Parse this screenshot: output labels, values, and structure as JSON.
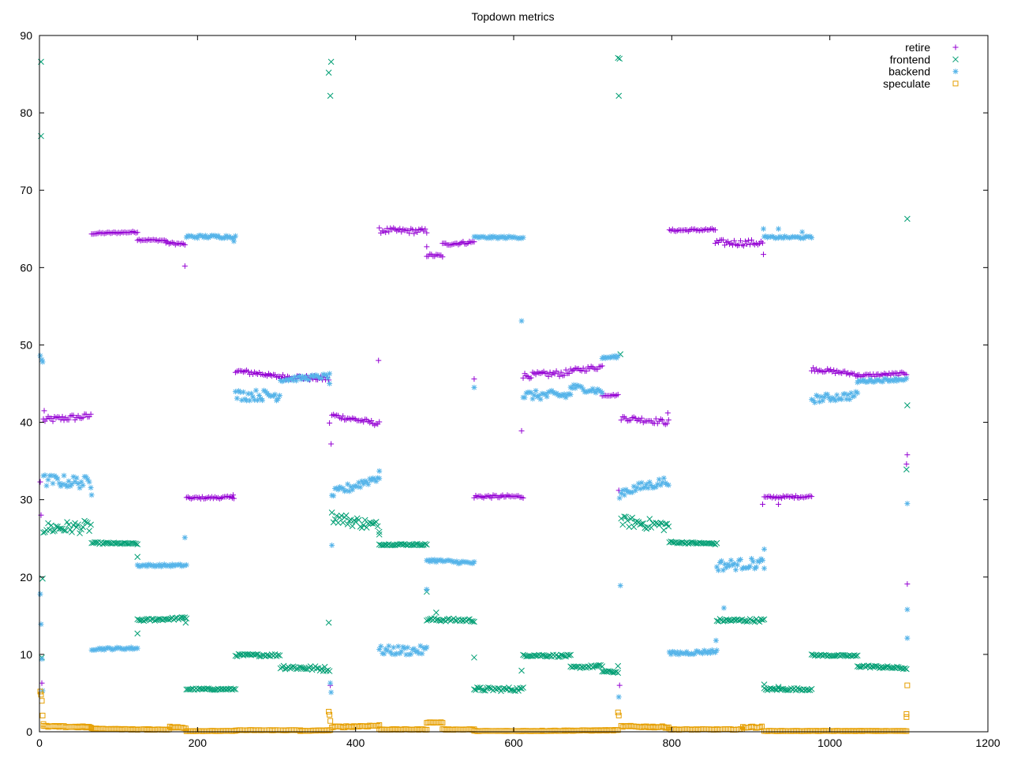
{
  "chart_data": {
    "type": "scatter",
    "title": "Topdown metrics",
    "xlabel": "",
    "ylabel": "",
    "xlim": [
      0,
      1200
    ],
    "ylim": [
      0,
      90
    ],
    "xticks": [
      0,
      200,
      400,
      600,
      800,
      1000,
      1200
    ],
    "yticks": [
      0,
      10,
      20,
      30,
      40,
      50,
      60,
      70,
      80,
      90
    ],
    "legend_position": "top-right",
    "grid": false,
    "series": [
      {
        "name": "retire",
        "marker": "plus",
        "color": "#9400d3",
        "segments": [
          {
            "x0": 5,
            "x1": 66,
            "y0": 40.3,
            "y1": 40.8,
            "step": 2,
            "jitter": 0.4
          },
          {
            "x0": 66,
            "x1": 124,
            "y0": 64.4,
            "y1": 64.6,
            "step": 2,
            "jitter": 0.1
          },
          {
            "x0": 124,
            "x1": 160,
            "y0": 63.6,
            "y1": 63.5,
            "step": 2,
            "jitter": 0.1
          },
          {
            "x0": 160,
            "x1": 185,
            "y0": 63.2,
            "y1": 63.0,
            "step": 2,
            "jitter": 0.15
          },
          {
            "x0": 186,
            "x1": 246,
            "y0": 30.2,
            "y1": 30.3,
            "step": 2,
            "jitter": 0.15
          },
          {
            "x0": 248,
            "x1": 290,
            "y0": 46.6,
            "y1": 46.2,
            "step": 2,
            "jitter": 0.3
          },
          {
            "x0": 290,
            "x1": 367,
            "y0": 46.0,
            "y1": 45.6,
            "step": 2,
            "jitter": 0.3
          },
          {
            "x0": 370,
            "x1": 430,
            "y0": 40.9,
            "y1": 39.8,
            "step": 2,
            "jitter": 0.3
          },
          {
            "x0": 430,
            "x1": 490,
            "y0": 64.8,
            "y1": 64.7,
            "step": 2,
            "jitter": 0.35
          },
          {
            "x0": 490,
            "x1": 510,
            "y0": 61.6,
            "y1": 61.5,
            "step": 2,
            "jitter": 0.2
          },
          {
            "x0": 510,
            "x1": 550,
            "y0": 63.0,
            "y1": 63.3,
            "step": 2,
            "jitter": 0.2
          },
          {
            "x0": 550,
            "x1": 612,
            "y0": 30.4,
            "y1": 30.4,
            "step": 2,
            "jitter": 0.2
          },
          {
            "x0": 612,
            "x1": 670,
            "y0": 46.0,
            "y1": 46.4,
            "step": 2,
            "jitter": 0.4
          },
          {
            "x0": 670,
            "x1": 712,
            "y0": 46.6,
            "y1": 47.2,
            "step": 2,
            "jitter": 0.3
          },
          {
            "x0": 712,
            "x1": 732,
            "y0": 43.5,
            "y1": 43.5,
            "step": 2,
            "jitter": 0.1
          },
          {
            "x0": 736,
            "x1": 797,
            "y0": 40.6,
            "y1": 40.0,
            "step": 2,
            "jitter": 0.35
          },
          {
            "x0": 797,
            "x1": 855,
            "y0": 64.8,
            "y1": 64.9,
            "step": 2,
            "jitter": 0.15
          },
          {
            "x0": 855,
            "x1": 915,
            "y0": 63.2,
            "y1": 63.2,
            "step": 2,
            "jitter": 0.4
          },
          {
            "x0": 917,
            "x1": 977,
            "y0": 30.3,
            "y1": 30.4,
            "step": 2,
            "jitter": 0.15
          },
          {
            "x0": 977,
            "x1": 1035,
            "y0": 46.9,
            "y1": 46.2,
            "step": 2,
            "jitter": 0.25
          },
          {
            "x0": 1035,
            "x1": 1098,
            "y0": 46.0,
            "y1": 46.3,
            "step": 2,
            "jitter": 0.2
          }
        ],
        "points": [
          [
            1,
            32.3
          ],
          [
            2,
            28
          ],
          [
            3,
            6.3
          ],
          [
            4,
            5.3
          ],
          [
            6,
            41.5
          ],
          [
            184,
            60.2
          ],
          [
            245,
            30.6
          ],
          [
            367,
            39.9
          ],
          [
            369,
            37.2
          ],
          [
            368,
            6.0
          ],
          [
            429,
            48.0
          ],
          [
            490,
            62.7
          ],
          [
            550,
            45.6
          ],
          [
            610,
            38.9
          ],
          [
            733,
            31.2
          ],
          [
            734,
            6.0
          ],
          [
            795,
            41.2
          ],
          [
            916,
            61.7
          ],
          [
            915,
            29.4
          ],
          [
            935,
            29.4
          ],
          [
            1098,
            35.8
          ],
          [
            1097,
            34.6
          ],
          [
            1098,
            19.1
          ]
        ]
      },
      {
        "name": "frontend",
        "marker": "cross",
        "color": "#009e73",
        "segments": [
          {
            "x0": 5,
            "x1": 66,
            "y0": 26.3,
            "y1": 26.5,
            "step": 2,
            "jitter": 0.8
          },
          {
            "x0": 66,
            "x1": 124,
            "y0": 24.4,
            "y1": 24.3,
            "step": 2,
            "jitter": 0.1
          },
          {
            "x0": 124,
            "x1": 186,
            "y0": 14.4,
            "y1": 14.7,
            "step": 2,
            "jitter": 0.15
          },
          {
            "x0": 186,
            "x1": 248,
            "y0": 5.5,
            "y1": 5.5,
            "step": 2,
            "jitter": 0.1
          },
          {
            "x0": 248,
            "x1": 305,
            "y0": 9.9,
            "y1": 9.9,
            "step": 2,
            "jitter": 0.15
          },
          {
            "x0": 305,
            "x1": 368,
            "y0": 8.4,
            "y1": 8.1,
            "step": 2,
            "jitter": 0.3
          },
          {
            "x0": 370,
            "x1": 430,
            "y0": 27.8,
            "y1": 26.5,
            "step": 2,
            "jitter": 0.7
          },
          {
            "x0": 430,
            "x1": 490,
            "y0": 24.2,
            "y1": 24.2,
            "step": 2,
            "jitter": 0.1
          },
          {
            "x0": 490,
            "x1": 550,
            "y0": 14.5,
            "y1": 14.4,
            "step": 2,
            "jitter": 0.2
          },
          {
            "x0": 550,
            "x1": 612,
            "y0": 5.5,
            "y1": 5.5,
            "step": 2,
            "jitter": 0.25
          },
          {
            "x0": 612,
            "x1": 672,
            "y0": 9.9,
            "y1": 9.8,
            "step": 2,
            "jitter": 0.15
          },
          {
            "x0": 672,
            "x1": 712,
            "y0": 8.3,
            "y1": 8.5,
            "step": 2,
            "jitter": 0.15
          },
          {
            "x0": 712,
            "x1": 733,
            "y0": 7.8,
            "y1": 7.7,
            "step": 2,
            "jitter": 0.1
          },
          {
            "x0": 736,
            "x1": 797,
            "y0": 27.2,
            "y1": 26.6,
            "step": 2,
            "jitter": 0.7
          },
          {
            "x0": 797,
            "x1": 857,
            "y0": 24.5,
            "y1": 24.3,
            "step": 2,
            "jitter": 0.1
          },
          {
            "x0": 857,
            "x1": 917,
            "y0": 14.4,
            "y1": 14.4,
            "step": 2,
            "jitter": 0.2
          },
          {
            "x0": 917,
            "x1": 977,
            "y0": 5.5,
            "y1": 5.5,
            "step": 2,
            "jitter": 0.15
          },
          {
            "x0": 977,
            "x1": 1035,
            "y0": 9.9,
            "y1": 9.8,
            "step": 2,
            "jitter": 0.1
          },
          {
            "x0": 1035,
            "x1": 1098,
            "y0": 8.5,
            "y1": 8.2,
            "step": 2,
            "jitter": 0.15
          }
        ],
        "points": [
          [
            2,
            86.6
          ],
          [
            2,
            77.0
          ],
          [
            3,
            9.6
          ],
          [
            4,
            19.8
          ],
          [
            124,
            22.6
          ],
          [
            124,
            12.7
          ],
          [
            185,
            14.1
          ],
          [
            366,
            85.2
          ],
          [
            368,
            82.2
          ],
          [
            369,
            86.6
          ],
          [
            366,
            14.1
          ],
          [
            430,
            25.5
          ],
          [
            490,
            18.1
          ],
          [
            502,
            15.4
          ],
          [
            550,
            9.6
          ],
          [
            610,
            7.9
          ],
          [
            732,
            87.1
          ],
          [
            733,
            82.2
          ],
          [
            734,
            87.0
          ],
          [
            732,
            8.5
          ],
          [
            735,
            48.8
          ],
          [
            917,
            6.1
          ],
          [
            935,
            5.8
          ],
          [
            1098,
            66.3
          ],
          [
            1098,
            42.2
          ],
          [
            1097,
            33.9
          ]
        ]
      },
      {
        "name": "backend",
        "marker": "star",
        "color": "#56b4e9",
        "segments": [
          {
            "x0": 5,
            "x1": 66,
            "y0": 32.5,
            "y1": 32.2,
            "step": 2,
            "jitter": 0.8
          },
          {
            "x0": 66,
            "x1": 124,
            "y0": 10.7,
            "y1": 10.8,
            "step": 2,
            "jitter": 0.15
          },
          {
            "x0": 124,
            "x1": 186,
            "y0": 21.5,
            "y1": 21.5,
            "step": 2,
            "jitter": 0.15
          },
          {
            "x0": 186,
            "x1": 248,
            "y0": 64.0,
            "y1": 64.0,
            "step": 2,
            "jitter": 0.2
          },
          {
            "x0": 248,
            "x1": 305,
            "y0": 43.5,
            "y1": 43.5,
            "step": 2,
            "jitter": 0.7
          },
          {
            "x0": 305,
            "x1": 368,
            "y0": 45.5,
            "y1": 46.0,
            "step": 2,
            "jitter": 0.3
          },
          {
            "x0": 370,
            "x1": 430,
            "y0": 30.7,
            "y1": 33.0,
            "step": 2,
            "jitter": 0.6
          },
          {
            "x0": 430,
            "x1": 490,
            "y0": 10.5,
            "y1": 10.5,
            "step": 2,
            "jitter": 0.6
          },
          {
            "x0": 490,
            "x1": 550,
            "y0": 22.2,
            "y1": 21.8,
            "step": 2,
            "jitter": 0.2
          },
          {
            "x0": 550,
            "x1": 612,
            "y0": 63.9,
            "y1": 63.9,
            "step": 2,
            "jitter": 0.15
          },
          {
            "x0": 612,
            "x1": 672,
            "y0": 43.5,
            "y1": 43.5,
            "step": 2,
            "jitter": 0.6
          },
          {
            "x0": 672,
            "x1": 712,
            "y0": 44.6,
            "y1": 44.0,
            "step": 2,
            "jitter": 0.4
          },
          {
            "x0": 712,
            "x1": 733,
            "y0": 48.3,
            "y1": 48.5,
            "step": 2,
            "jitter": 0.15
          },
          {
            "x0": 736,
            "x1": 797,
            "y0": 31.0,
            "y1": 32.5,
            "step": 2,
            "jitter": 0.6
          },
          {
            "x0": 797,
            "x1": 857,
            "y0": 10.1,
            "y1": 10.4,
            "step": 2,
            "jitter": 0.25
          },
          {
            "x0": 857,
            "x1": 917,
            "y0": 21.5,
            "y1": 21.8,
            "step": 2,
            "jitter": 0.7
          },
          {
            "x0": 917,
            "x1": 977,
            "y0": 63.9,
            "y1": 63.9,
            "step": 2,
            "jitter": 0.15
          },
          {
            "x0": 977,
            "x1": 1035,
            "y0": 43.0,
            "y1": 43.5,
            "step": 2,
            "jitter": 0.5
          },
          {
            "x0": 1035,
            "x1": 1098,
            "y0": 45.3,
            "y1": 45.6,
            "step": 2,
            "jitter": 0.2
          }
        ],
        "points": [
          [
            1,
            48.6
          ],
          [
            3,
            48.1
          ],
          [
            4,
            47.8
          ],
          [
            1,
            17.8
          ],
          [
            2,
            13.9
          ],
          [
            3,
            9.4
          ],
          [
            4,
            5.3
          ],
          [
            66,
            30.6
          ],
          [
            184,
            25.1
          ],
          [
            246,
            63.4
          ],
          [
            367,
            45.0
          ],
          [
            368,
            6.3
          ],
          [
            369,
            5.1
          ],
          [
            370,
            24.1
          ],
          [
            430,
            33.7
          ],
          [
            490,
            18.4
          ],
          [
            550,
            44.5
          ],
          [
            610,
            53.1
          ],
          [
            735,
            18.9
          ],
          [
            733,
            4.5
          ],
          [
            734,
            30.2
          ],
          [
            856,
            11.8
          ],
          [
            866,
            16.0
          ],
          [
            917,
            23.6
          ],
          [
            916,
            65.0
          ],
          [
            935,
            65.0
          ],
          [
            965,
            64.6
          ],
          [
            1098,
            29.5
          ],
          [
            1098,
            15.8
          ],
          [
            1098,
            12.1
          ]
        ]
      },
      {
        "name": "speculate",
        "marker": "square",
        "color": "#e69f00",
        "segments": [
          {
            "x0": 5,
            "x1": 66,
            "y0": 0.7,
            "y1": 0.6,
            "step": 2,
            "jitter": 0.1
          },
          {
            "x0": 66,
            "x1": 124,
            "y0": 0.4,
            "y1": 0.3,
            "step": 2,
            "jitter": 0.05
          },
          {
            "x0": 124,
            "x1": 165,
            "y0": 0.3,
            "y1": 0.3,
            "step": 2,
            "jitter": 0.05
          },
          {
            "x0": 165,
            "x1": 186,
            "y0": 0.6,
            "y1": 0.5,
            "step": 2,
            "jitter": 0.1
          },
          {
            "x0": 186,
            "x1": 248,
            "y0": 0.1,
            "y1": 0.1,
            "step": 2,
            "jitter": 0.03
          },
          {
            "x0": 248,
            "x1": 330,
            "y0": 0.2,
            "y1": 0.2,
            "step": 2,
            "jitter": 0.03
          },
          {
            "x0": 330,
            "x1": 368,
            "y0": 0.1,
            "y1": 0.2,
            "step": 2,
            "jitter": 0.03
          },
          {
            "x0": 370,
            "x1": 430,
            "y0": 0.6,
            "y1": 0.8,
            "step": 2,
            "jitter": 0.1
          },
          {
            "x0": 430,
            "x1": 490,
            "y0": 0.3,
            "y1": 0.3,
            "step": 2,
            "jitter": 0.05
          },
          {
            "x0": 490,
            "x1": 510,
            "y0": 1.2,
            "y1": 1.2,
            "step": 2,
            "jitter": 0.05
          },
          {
            "x0": 510,
            "x1": 550,
            "y0": 0.3,
            "y1": 0.3,
            "step": 2,
            "jitter": 0.05
          },
          {
            "x0": 550,
            "x1": 612,
            "y0": 0.1,
            "y1": 0.1,
            "step": 2,
            "jitter": 0.03
          },
          {
            "x0": 612,
            "x1": 733,
            "y0": 0.1,
            "y1": 0.2,
            "step": 2,
            "jitter": 0.05
          },
          {
            "x0": 736,
            "x1": 797,
            "y0": 0.7,
            "y1": 0.6,
            "step": 2,
            "jitter": 0.1
          },
          {
            "x0": 797,
            "x1": 890,
            "y0": 0.3,
            "y1": 0.3,
            "step": 2,
            "jitter": 0.05
          },
          {
            "x0": 890,
            "x1": 915,
            "y0": 0.6,
            "y1": 0.6,
            "step": 2,
            "jitter": 0.1
          },
          {
            "x0": 917,
            "x1": 1098,
            "y0": 0.1,
            "y1": 0.1,
            "step": 2,
            "jitter": 0.03
          }
        ],
        "points": [
          [
            1,
            5.2
          ],
          [
            2,
            4.8
          ],
          [
            3,
            4.0
          ],
          [
            4,
            2.1
          ],
          [
            5,
            1.0
          ],
          [
            366,
            2.6
          ],
          [
            367,
            2.2
          ],
          [
            368,
            1.4
          ],
          [
            732,
            2.5
          ],
          [
            733,
            2.1
          ],
          [
            1098,
            6.0
          ],
          [
            1097,
            2.3
          ],
          [
            1097,
            1.9
          ]
        ]
      }
    ]
  }
}
